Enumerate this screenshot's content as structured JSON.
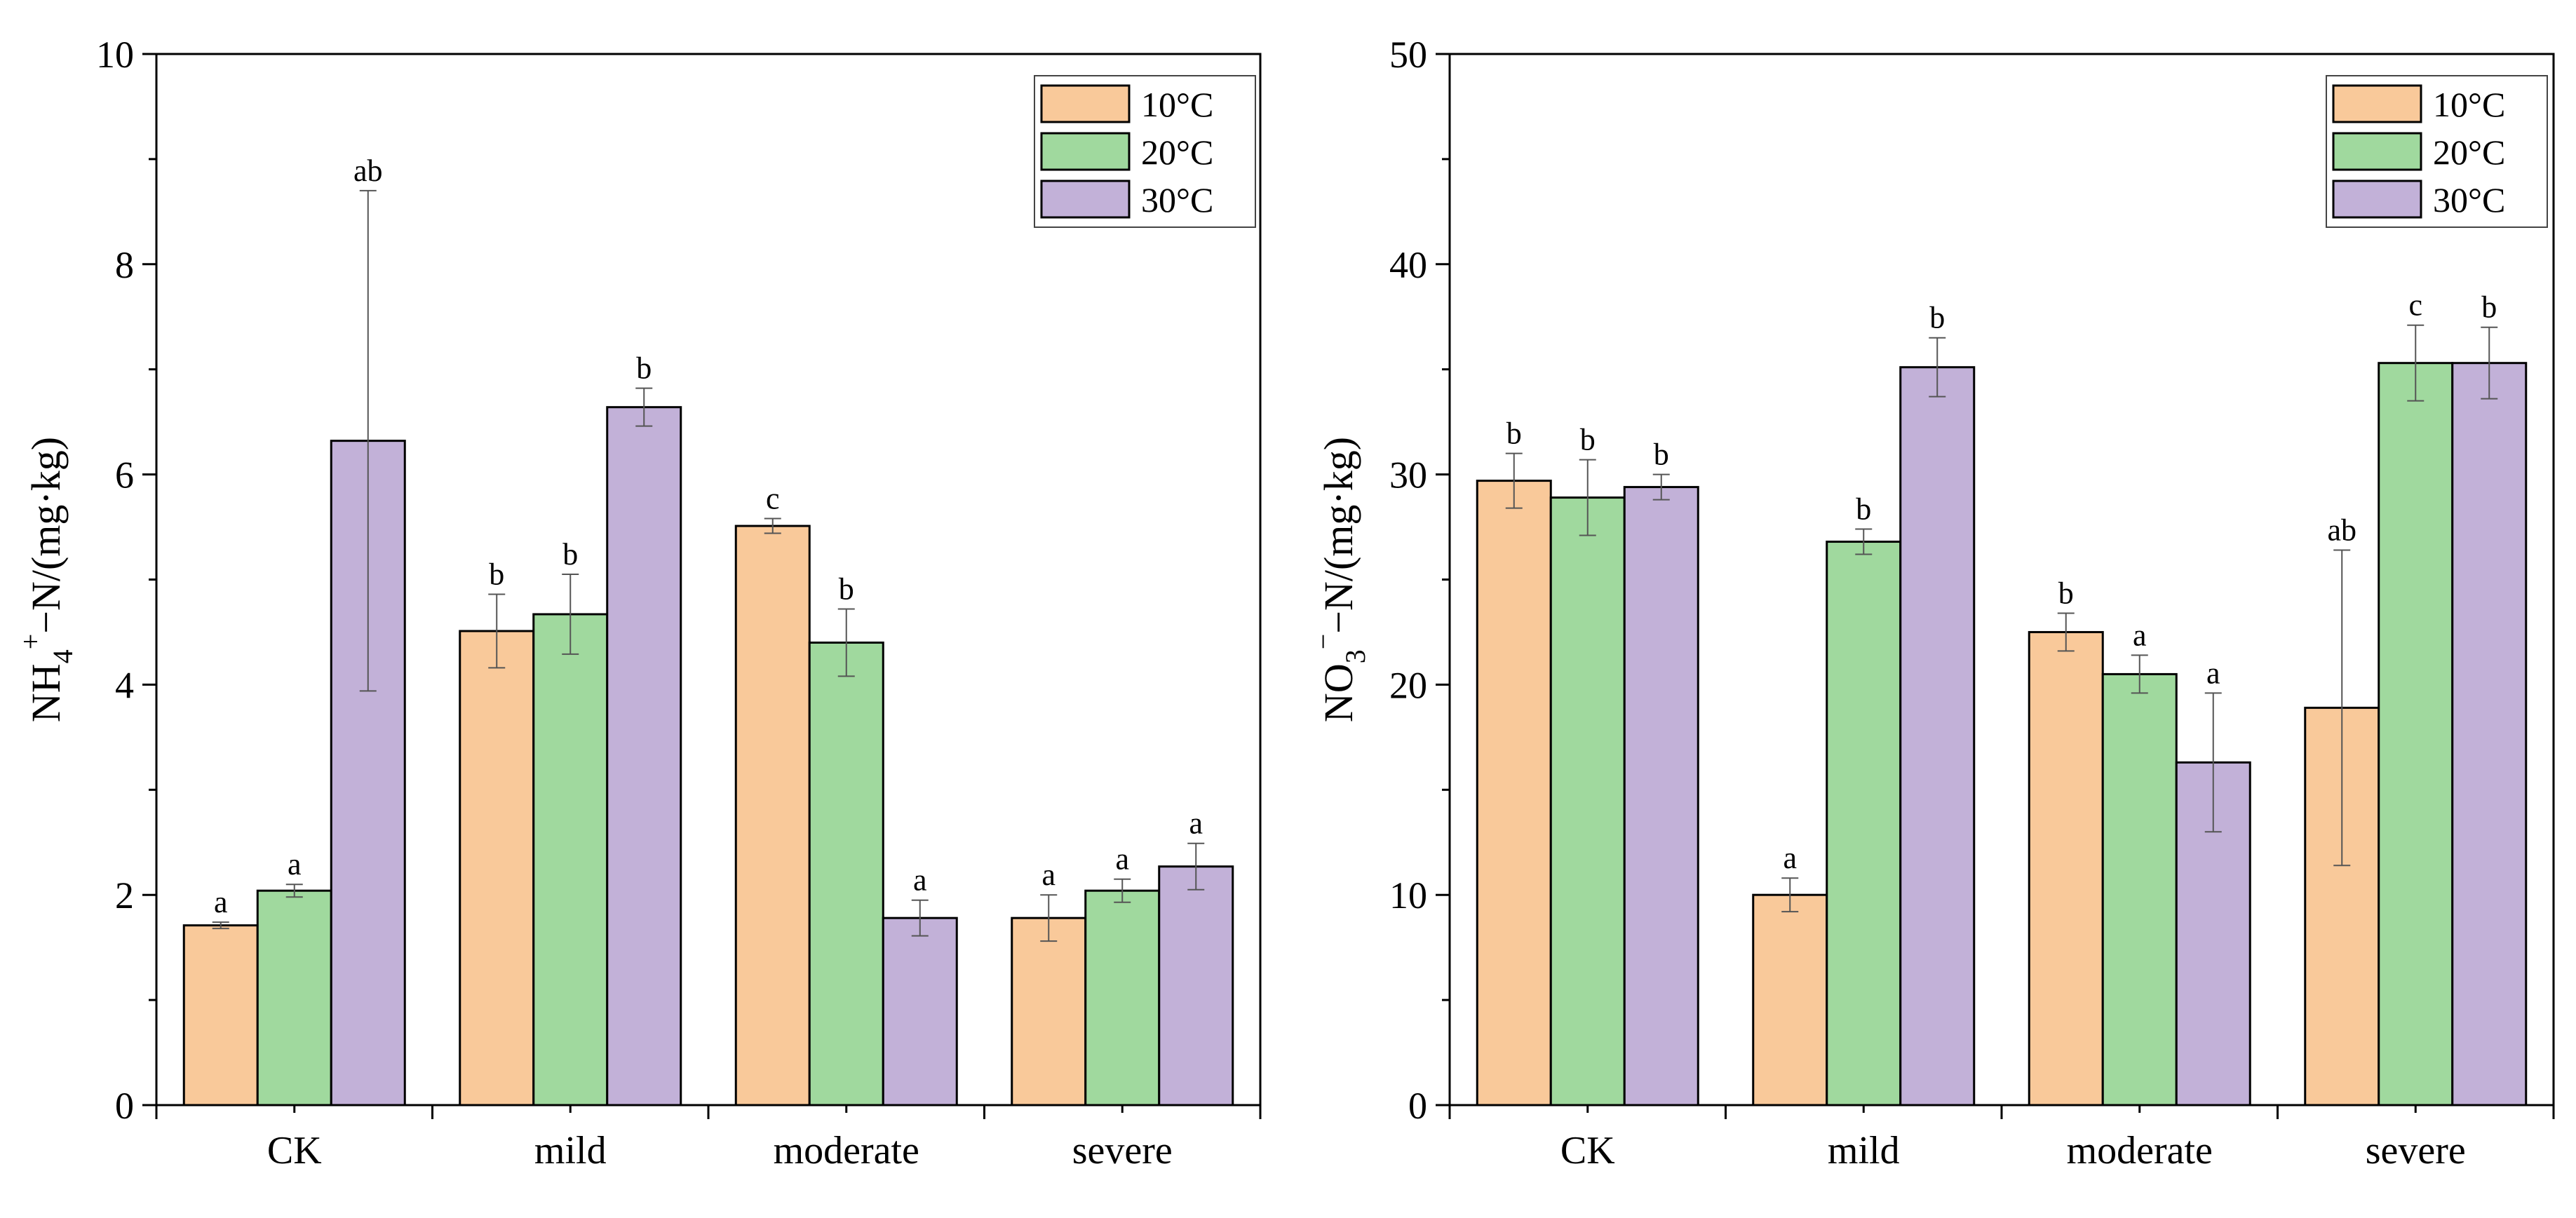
{
  "figure": {
    "background": "#ffffff"
  },
  "chart_data": [
    {
      "type": "bar",
      "id": "nh4",
      "ylabel_main": "NH",
      "ylabel_sub": "4",
      "ylabel_sup": "+",
      "ylabel_rest": "−N/(mg·kg)",
      "categories": [
        "CK",
        "mild",
        "moderate",
        "severe"
      ],
      "ylim": [
        0,
        10
      ],
      "yticks": [
        "0",
        "2",
        "4",
        "6",
        "8",
        "10"
      ],
      "legend": {
        "placement": "top-right"
      },
      "series": [
        {
          "name": "10°C",
          "color": "#F9C99A",
          "values": [
            1.71,
            4.51,
            5.51,
            1.78
          ],
          "errors": [
            0.03,
            0.35,
            0.07,
            0.22
          ],
          "letters": [
            "a",
            "b",
            "c",
            "a"
          ]
        },
        {
          "name": "20°C",
          "color": "#A0D99E",
          "values": [
            2.04,
            4.67,
            4.4,
            2.04
          ],
          "errors": [
            0.06,
            0.38,
            0.32,
            0.11
          ],
          "letters": [
            "a",
            "b",
            "b",
            "a"
          ]
        },
        {
          "name": "30°C",
          "color": "#C2B1D8",
          "values": [
            6.32,
            6.64,
            1.78,
            2.27
          ],
          "errors": [
            2.38,
            0.18,
            0.17,
            0.22
          ],
          "letters": [
            "ab",
            "b",
            "a",
            "a"
          ]
        }
      ]
    },
    {
      "type": "bar",
      "id": "no3",
      "ylabel_main": "NO",
      "ylabel_sub": "3",
      "ylabel_sup": "−",
      "ylabel_rest": "−N/(mg·kg)",
      "categories": [
        "CK",
        "mild",
        "moderate",
        "severe"
      ],
      "ylim": [
        0,
        50
      ],
      "yticks": [
        "0",
        "10",
        "20",
        "30",
        "40",
        "50"
      ],
      "legend": {
        "placement": "top-right"
      },
      "series": [
        {
          "name": "10°C",
          "color": "#F9C99A",
          "values": [
            29.7,
            10.0,
            22.5,
            18.9
          ],
          "errors": [
            1.3,
            0.8,
            0.9,
            7.5
          ],
          "letters": [
            "b",
            "a",
            "b",
            "ab"
          ]
        },
        {
          "name": "20°C",
          "color": "#A0D99E",
          "values": [
            28.9,
            26.8,
            20.5,
            35.3
          ],
          "errors": [
            1.8,
            0.6,
            0.9,
            1.8
          ],
          "letters": [
            "b",
            "b",
            "a",
            "c"
          ]
        },
        {
          "name": "30°C",
          "color": "#C2B1D8",
          "values": [
            29.4,
            35.1,
            16.3,
            35.3
          ],
          "errors": [
            0.6,
            1.4,
            3.3,
            1.7
          ],
          "letters": [
            "b",
            "b",
            "a",
            "b"
          ]
        }
      ]
    }
  ]
}
